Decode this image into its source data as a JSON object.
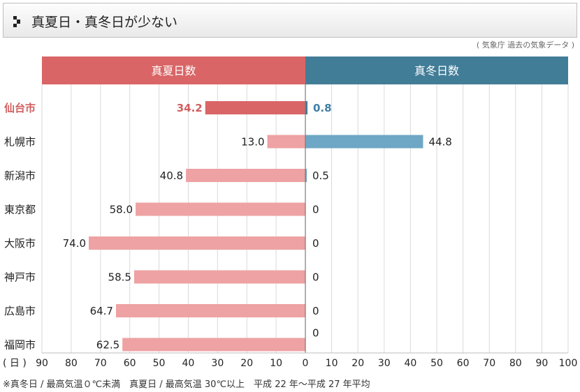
{
  "header": {
    "title": "真夏日・真冬日が少ない"
  },
  "source": "( 気象庁 過去の気象データ )",
  "footnote": "※真冬日 / 最高気温０℃未満　真夏日 / 最高気温 30℃以上　平成 22 年〜平成 27 年平均",
  "colors": {
    "summer_header": "#d96566",
    "winter_header": "#427d98",
    "summer_bar": "#eea2a3",
    "summer_bar_highlight": "#d96566",
    "winter_bar": "#6ea7c5",
    "winter_bar_highlight": "#427d98",
    "highlight_label": "#d05f5f",
    "highlight_value_winter": "#3f7fa4"
  },
  "chart_data": {
    "type": "bar",
    "orientation": "horizontal-diverging",
    "left_header": "真夏日数",
    "right_header": "真冬日数",
    "unit_label": "( 日 )",
    "left_axis": {
      "ticks": [
        90,
        80,
        70,
        60,
        50,
        40,
        30,
        20,
        10,
        0
      ],
      "range": [
        0,
        90
      ]
    },
    "right_axis": {
      "ticks": [
        0,
        10,
        20,
        30,
        40,
        50,
        60,
        70,
        80,
        90,
        100
      ],
      "range": [
        0,
        100
      ]
    },
    "grid": true,
    "categories": [
      "仙台市",
      "札幌市",
      "新潟市",
      "東京都",
      "大阪市",
      "神戸市",
      "広島市",
      "福岡市"
    ],
    "highlight": "仙台市",
    "series": [
      {
        "name": "真夏日数",
        "values": [
          34.2,
          13.0,
          40.8,
          58.0,
          74.0,
          58.5,
          64.7,
          62.5
        ],
        "labels": [
          "34.2",
          "13.0",
          "40.8",
          "58.0",
          "74.0",
          "58.5",
          "64.7",
          "62.5"
        ]
      },
      {
        "name": "真冬日数",
        "values": [
          0.8,
          44.8,
          0.5,
          0,
          0,
          0,
          0,
          0
        ],
        "labels": [
          "0.8",
          "44.8",
          "0.5",
          "0",
          "0",
          "0",
          "0",
          "0"
        ]
      }
    ]
  }
}
